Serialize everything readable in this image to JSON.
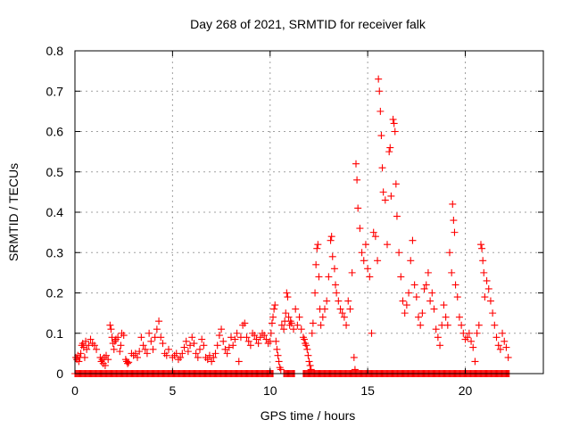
{
  "chart_data": {
    "type": "scatter",
    "title": "Day 268 of 2021, SRMTID for receiver falk",
    "xlabel": "GPS time / hours",
    "ylabel": "SRMTID / TECUs",
    "xlim": [
      0,
      24
    ],
    "ylim": [
      0,
      0.8
    ],
    "xticks": [
      0,
      5,
      10,
      15,
      20
    ],
    "xtick_labels": [
      "0",
      "5",
      "10",
      "15",
      "20"
    ],
    "yticks": [
      0,
      0.1,
      0.2,
      0.3,
      0.4,
      0.5,
      0.6,
      0.7,
      0.8
    ],
    "ytick_labels": [
      "0",
      "0.1",
      "0.2",
      "0.3",
      "0.4",
      "0.5",
      "0.6",
      "0.7",
      "0.8"
    ],
    "grid": true,
    "legend": "none",
    "marker": "plus",
    "color": "#ff0000",
    "zero_value_hours": [
      0.0,
      0.1,
      0.2,
      0.3,
      0.4,
      0.5,
      0.6,
      0.7,
      0.8,
      0.9,
      1.0,
      1.1,
      1.2,
      1.3,
      1.4,
      1.5,
      1.6,
      1.7,
      1.8,
      1.9,
      2.0,
      2.1,
      2.2,
      2.3,
      2.4,
      2.5,
      2.6,
      2.7,
      2.8,
      2.9,
      3.0,
      3.1,
      3.2,
      3.3,
      3.4,
      3.5,
      3.6,
      3.7,
      3.8,
      3.9,
      4.0,
      4.1,
      4.2,
      4.3,
      4.4,
      4.5,
      4.6,
      4.7,
      4.8,
      4.9,
      5.0,
      5.1,
      5.2,
      5.3,
      5.4,
      5.5,
      5.6,
      5.7,
      5.8,
      5.9,
      6.0,
      6.1,
      6.2,
      6.3,
      6.4,
      6.5,
      6.6,
      6.7,
      6.8,
      6.9,
      7.0,
      7.1,
      7.2,
      7.3,
      7.4,
      7.5,
      7.6,
      7.7,
      7.8,
      7.9,
      8.0,
      8.1,
      8.2,
      8.3,
      8.4,
      8.5,
      8.6,
      8.7,
      8.8,
      8.9,
      9.0,
      9.1,
      9.2,
      9.3,
      9.4,
      9.5,
      9.6,
      9.7,
      9.8,
      9.9,
      10.0,
      10.1,
      10.7,
      10.8,
      10.9,
      11.0,
      11.1,
      11.2,
      11.7,
      11.8,
      11.9,
      12.0,
      12.1,
      12.2,
      12.3,
      12.4,
      12.5,
      12.6,
      12.7,
      12.8,
      12.9,
      13.0,
      13.1,
      13.2,
      13.3,
      13.4,
      13.5,
      13.6,
      13.7,
      13.8,
      13.9,
      14.0,
      14.1,
      14.2,
      14.3,
      14.4,
      14.5,
      14.6,
      14.7,
      14.8,
      14.9,
      15.0,
      15.1,
      15.2,
      15.3,
      15.4,
      15.5,
      15.6,
      15.7,
      15.8,
      15.9,
      16.0,
      16.1,
      16.2,
      16.3,
      16.4,
      16.5,
      16.6,
      16.7,
      16.8,
      16.9,
      17.0,
      17.1,
      17.2,
      17.3,
      17.4,
      17.5,
      17.6,
      17.7,
      17.8,
      17.9,
      18.0,
      18.1,
      18.2,
      18.3,
      18.4,
      18.5,
      18.6,
      18.7,
      18.8,
      18.9,
      19.0,
      19.1,
      19.2,
      19.3,
      19.4,
      19.5,
      19.6,
      19.7,
      19.8,
      19.9,
      20.0,
      20.1,
      20.2,
      20.3,
      20.4,
      20.5,
      20.6,
      20.7,
      20.8,
      20.9,
      21.0,
      21.1,
      21.2,
      21.3,
      21.4,
      21.5,
      21.6,
      21.7,
      21.8,
      21.9,
      22.0,
      22.1,
      22.2
    ],
    "points": [
      [
        0.05,
        0.04
      ],
      [
        0.1,
        0.035
      ],
      [
        0.15,
        0.045
      ],
      [
        0.2,
        0.03
      ],
      [
        0.25,
        0.04
      ],
      [
        0.3,
        0.05
      ],
      [
        0.35,
        0.07
      ],
      [
        0.4,
        0.075
      ],
      [
        0.45,
        0.065
      ],
      [
        0.5,
        0.04
      ],
      [
        0.55,
        0.08
      ],
      [
        0.6,
        0.06
      ],
      [
        0.7,
        0.07
      ],
      [
        0.8,
        0.085
      ],
      [
        0.9,
        0.075
      ],
      [
        1.0,
        0.07
      ],
      [
        1.1,
        0.06
      ],
      [
        1.3,
        0.04
      ],
      [
        1.35,
        0.03
      ],
      [
        1.4,
        0.035
      ],
      [
        1.45,
        0.025
      ],
      [
        1.5,
        0.04
      ],
      [
        1.55,
        0.02
      ],
      [
        1.6,
        0.045
      ],
      [
        1.7,
        0.035
      ],
      [
        1.8,
        0.12
      ],
      [
        1.85,
        0.11
      ],
      [
        1.9,
        0.09
      ],
      [
        1.95,
        0.075
      ],
      [
        2.0,
        0.06
      ],
      [
        2.05,
        0.08
      ],
      [
        2.1,
        0.085
      ],
      [
        2.2,
        0.09
      ],
      [
        2.3,
        0.055
      ],
      [
        2.35,
        0.07
      ],
      [
        2.4,
        0.1
      ],
      [
        2.5,
        0.095
      ],
      [
        2.6,
        0.035
      ],
      [
        2.65,
        0.03
      ],
      [
        2.7,
        0.025
      ],
      [
        2.75,
        0.028
      ],
      [
        2.9,
        0.05
      ],
      [
        3.0,
        0.045
      ],
      [
        3.1,
        0.05
      ],
      [
        3.2,
        0.04
      ],
      [
        3.3,
        0.055
      ],
      [
        3.4,
        0.09
      ],
      [
        3.5,
        0.07
      ],
      [
        3.6,
        0.06
      ],
      [
        3.7,
        0.05
      ],
      [
        3.8,
        0.1
      ],
      [
        3.9,
        0.08
      ],
      [
        4.0,
        0.06
      ],
      [
        4.1,
        0.09
      ],
      [
        4.2,
        0.11
      ],
      [
        4.3,
        0.13
      ],
      [
        4.4,
        0.09
      ],
      [
        4.5,
        0.075
      ],
      [
        4.6,
        0.05
      ],
      [
        4.7,
        0.045
      ],
      [
        4.8,
        0.06
      ],
      [
        5.0,
        0.04
      ],
      [
        5.1,
        0.045
      ],
      [
        5.2,
        0.05
      ],
      [
        5.3,
        0.035
      ],
      [
        5.4,
        0.04
      ],
      [
        5.5,
        0.05
      ],
      [
        5.6,
        0.065
      ],
      [
        5.7,
        0.08
      ],
      [
        5.8,
        0.055
      ],
      [
        5.9,
        0.07
      ],
      [
        6.0,
        0.09
      ],
      [
        6.1,
        0.075
      ],
      [
        6.2,
        0.05
      ],
      [
        6.3,
        0.04
      ],
      [
        6.4,
        0.06
      ],
      [
        6.5,
        0.085
      ],
      [
        6.6,
        0.07
      ],
      [
        6.7,
        0.04
      ],
      [
        6.8,
        0.035
      ],
      [
        6.9,
        0.045
      ],
      [
        7.0,
        0.03
      ],
      [
        7.1,
        0.04
      ],
      [
        7.2,
        0.05
      ],
      [
        7.3,
        0.07
      ],
      [
        7.4,
        0.095
      ],
      [
        7.5,
        0.11
      ],
      [
        7.6,
        0.08
      ],
      [
        7.7,
        0.06
      ],
      [
        7.8,
        0.05
      ],
      [
        7.9,
        0.065
      ],
      [
        8.0,
        0.09
      ],
      [
        8.1,
        0.07
      ],
      [
        8.2,
        0.085
      ],
      [
        8.3,
        0.1
      ],
      [
        8.4,
        0.03
      ],
      [
        8.5,
        0.09
      ],
      [
        8.6,
        0.12
      ],
      [
        8.7,
        0.125
      ],
      [
        8.8,
        0.09
      ],
      [
        8.9,
        0.08
      ],
      [
        9.0,
        0.07
      ],
      [
        9.1,
        0.1
      ],
      [
        9.2,
        0.095
      ],
      [
        9.3,
        0.085
      ],
      [
        9.4,
        0.075
      ],
      [
        9.5,
        0.09
      ],
      [
        9.6,
        0.1
      ],
      [
        9.7,
        0.095
      ],
      [
        9.8,
        0.085
      ],
      [
        9.9,
        0.075
      ],
      [
        10.0,
        0.08
      ],
      [
        10.05,
        0.1
      ],
      [
        10.1,
        0.125
      ],
      [
        10.15,
        0.14
      ],
      [
        10.2,
        0.16
      ],
      [
        10.25,
        0.17
      ],
      [
        10.3,
        0.08
      ],
      [
        10.35,
        0.06
      ],
      [
        10.4,
        0.045
      ],
      [
        10.45,
        0.03
      ],
      [
        10.5,
        0.015
      ],
      [
        10.55,
        0.01
      ],
      [
        10.6,
        0.12
      ],
      [
        10.7,
        0.11
      ],
      [
        10.75,
        0.13
      ],
      [
        10.8,
        0.15
      ],
      [
        10.85,
        0.2
      ],
      [
        10.9,
        0.19
      ],
      [
        10.95,
        0.14
      ],
      [
        11.0,
        0.12
      ],
      [
        11.05,
        0.13
      ],
      [
        11.1,
        0.125
      ],
      [
        11.2,
        0.11
      ],
      [
        11.3,
        0.16
      ],
      [
        11.4,
        0.12
      ],
      [
        11.5,
        0.14
      ],
      [
        11.6,
        0.11
      ],
      [
        11.7,
        0.09
      ],
      [
        11.75,
        0.085
      ],
      [
        11.8,
        0.075
      ],
      [
        11.85,
        0.07
      ],
      [
        11.9,
        0.06
      ],
      [
        11.95,
        0.045
      ],
      [
        12.0,
        0.03
      ],
      [
        12.05,
        0.02
      ],
      [
        12.1,
        0.01
      ],
      [
        12.15,
        0.1
      ],
      [
        12.2,
        0.125
      ],
      [
        12.3,
        0.2
      ],
      [
        12.35,
        0.27
      ],
      [
        12.4,
        0.31
      ],
      [
        12.45,
        0.32
      ],
      [
        12.5,
        0.24
      ],
      [
        12.55,
        0.16
      ],
      [
        12.6,
        0.12
      ],
      [
        12.7,
        0.14
      ],
      [
        12.8,
        0.16
      ],
      [
        12.9,
        0.18
      ],
      [
        13.0,
        0.24
      ],
      [
        13.1,
        0.33
      ],
      [
        13.15,
        0.34
      ],
      [
        13.2,
        0.29
      ],
      [
        13.3,
        0.26
      ],
      [
        13.35,
        0.22
      ],
      [
        13.4,
        0.2
      ],
      [
        13.5,
        0.18
      ],
      [
        13.6,
        0.16
      ],
      [
        13.7,
        0.15
      ],
      [
        13.8,
        0.14
      ],
      [
        13.9,
        0.12
      ],
      [
        14.0,
        0.18
      ],
      [
        14.1,
        0.16
      ],
      [
        14.2,
        0.25
      ],
      [
        14.3,
        0.04
      ],
      [
        14.35,
        0.01
      ],
      [
        14.4,
        0.52
      ],
      [
        14.45,
        0.48
      ],
      [
        14.5,
        0.41
      ],
      [
        14.6,
        0.36
      ],
      [
        14.7,
        0.3
      ],
      [
        14.8,
        0.28
      ],
      [
        14.9,
        0.32
      ],
      [
        15.0,
        0.26
      ],
      [
        15.1,
        0.24
      ],
      [
        15.2,
        0.1
      ],
      [
        15.3,
        0.35
      ],
      [
        15.4,
        0.34
      ],
      [
        15.5,
        0.28
      ],
      [
        15.55,
        0.73
      ],
      [
        15.6,
        0.7
      ],
      [
        15.65,
        0.65
      ],
      [
        15.7,
        0.59
      ],
      [
        15.75,
        0.51
      ],
      [
        15.8,
        0.45
      ],
      [
        15.9,
        0.43
      ],
      [
        16.0,
        0.32
      ],
      [
        16.1,
        0.55
      ],
      [
        16.15,
        0.56
      ],
      [
        16.2,
        0.44
      ],
      [
        16.3,
        0.63
      ],
      [
        16.35,
        0.62
      ],
      [
        16.4,
        0.6
      ],
      [
        16.45,
        0.47
      ],
      [
        16.5,
        0.39
      ],
      [
        16.6,
        0.3
      ],
      [
        16.7,
        0.24
      ],
      [
        16.8,
        0.18
      ],
      [
        16.9,
        0.15
      ],
      [
        17.0,
        0.17
      ],
      [
        17.1,
        0.2
      ],
      [
        17.2,
        0.28
      ],
      [
        17.3,
        0.33
      ],
      [
        17.4,
        0.22
      ],
      [
        17.5,
        0.19
      ],
      [
        17.6,
        0.14
      ],
      [
        17.7,
        0.12
      ],
      [
        17.8,
        0.15
      ],
      [
        17.9,
        0.21
      ],
      [
        18.0,
        0.22
      ],
      [
        18.1,
        0.25
      ],
      [
        18.2,
        0.18
      ],
      [
        18.3,
        0.2
      ],
      [
        18.4,
        0.16
      ],
      [
        18.5,
        0.11
      ],
      [
        18.6,
        0.09
      ],
      [
        18.7,
        0.07
      ],
      [
        18.8,
        0.12
      ],
      [
        18.9,
        0.17
      ],
      [
        19.0,
        0.14
      ],
      [
        19.1,
        0.12
      ],
      [
        19.2,
        0.3
      ],
      [
        19.3,
        0.25
      ],
      [
        19.35,
        0.42
      ],
      [
        19.4,
        0.38
      ],
      [
        19.45,
        0.35
      ],
      [
        19.5,
        0.22
      ],
      [
        19.6,
        0.19
      ],
      [
        19.7,
        0.14
      ],
      [
        19.8,
        0.12
      ],
      [
        19.9,
        0.1
      ],
      [
        20.0,
        0.085
      ],
      [
        20.1,
        0.09
      ],
      [
        20.2,
        0.1
      ],
      [
        20.3,
        0.08
      ],
      [
        20.4,
        0.065
      ],
      [
        20.5,
        0.03
      ],
      [
        20.6,
        0.1
      ],
      [
        20.7,
        0.12
      ],
      [
        20.8,
        0.32
      ],
      [
        20.85,
        0.31
      ],
      [
        20.9,
        0.28
      ],
      [
        20.95,
        0.25
      ],
      [
        21.0,
        0.19
      ],
      [
        21.1,
        0.23
      ],
      [
        21.2,
        0.21
      ],
      [
        21.3,
        0.18
      ],
      [
        21.4,
        0.15
      ],
      [
        21.5,
        0.12
      ],
      [
        21.6,
        0.09
      ],
      [
        21.7,
        0.07
      ],
      [
        21.8,
        0.06
      ],
      [
        21.9,
        0.1
      ],
      [
        22.0,
        0.08
      ],
      [
        22.1,
        0.065
      ],
      [
        22.2,
        0.04
      ]
    ]
  }
}
